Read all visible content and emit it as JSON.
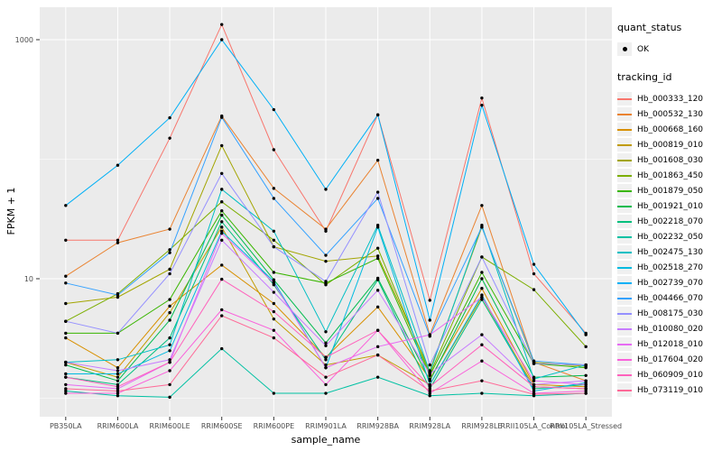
{
  "colors": {
    "figure_background": "#FFFFFF",
    "panel_background": "#EBEBEB",
    "gridline": "#FFFFFF",
    "point": "#000000",
    "tick_text": "#4D4D4D",
    "tick_mark": "#333333",
    "axis_title": "#000000",
    "legend_key_background": "#F0F0F0"
  },
  "chart_data": {
    "type": "line",
    "title": "",
    "xlabel": "sample_name",
    "ylabel": "FPKM + 1",
    "y_scale": "log10",
    "ylim": [
      0.7,
      1800
    ],
    "y_major_ticks": [
      10,
      1000
    ],
    "y_tick_labels": [
      "10",
      "1000"
    ],
    "y_minor_gridlines": [
      1,
      100
    ],
    "grid": "white major/minor gridlines on grey panel (ggplot default)",
    "legend_position": "right",
    "point_marker": {
      "shape": "small-filled-circle",
      "color": "#000000",
      "meaning": "quant_status OK"
    },
    "legend": {
      "quant_status_title": "quant_status",
      "quant_status_ok_label": "OK",
      "tracking_id_title": "tracking_id"
    },
    "categories": [
      "PB350LA",
      "RRIM600LA",
      "RRIM600LE",
      "RRIM600SE",
      "RRIM600PE",
      "RRIM901LA",
      "RRIM928BA",
      "RRIM928LA",
      "RRIM928LE",
      "RRII105LA_Control",
      "RRII105LA_Stressed"
    ],
    "series": [
      {
        "name": "Hb_000333_120",
        "color": "#F8766D",
        "values": [
          21,
          21,
          150,
          1340,
          120,
          25,
          235,
          6.6,
          325,
          11,
          3.5
        ]
      },
      {
        "name": "Hb_000532_130",
        "color": "#EA8331",
        "values": [
          10.5,
          20,
          26,
          230,
          57,
          26,
          98,
          3.4,
          41,
          2.0,
          1.4
        ]
      },
      {
        "name": "Hb_000668_160",
        "color": "#D89000",
        "values": [
          3.2,
          1.8,
          5.9,
          13,
          6.2,
          2.2,
          5.8,
          1.45,
          8.3,
          1.3,
          1.25
        ]
      },
      {
        "name": "Hb_000819_010",
        "color": "#C09B00",
        "values": [
          2.0,
          1.5,
          5.2,
          27,
          4.6,
          1.9,
          2.3,
          1.3,
          7.0,
          1.25,
          1.2
        ]
      },
      {
        "name": "Hb_001608_030",
        "color": "#A3A500",
        "values": [
          6.2,
          7.0,
          12,
          130,
          18.5,
          14,
          15.5,
          1.7,
          27,
          2.0,
          1.85
        ]
      },
      {
        "name": "Hb_001863_450",
        "color": "#7CAE00",
        "values": [
          4.4,
          7.5,
          17.5,
          44,
          21,
          8.9,
          18,
          1.6,
          15.2,
          8.1,
          2.7
        ]
      },
      {
        "name": "Hb_001879_050",
        "color": "#39B600",
        "values": [
          3.5,
          3.5,
          6.7,
          37,
          11.3,
          9.2,
          14.8,
          1.55,
          11.3,
          1.95,
          1.8
        ]
      },
      {
        "name": "Hb_001921_010",
        "color": "#00BB4E",
        "values": [
          1.9,
          1.4,
          4.5,
          34,
          9.8,
          2.9,
          10.1,
          1.4,
          10,
          1.5,
          1.55
        ]
      },
      {
        "name": "Hb_002218_070",
        "color": "#00BF7D",
        "values": [
          1.5,
          1.3,
          3.2,
          30,
          8.9,
          2.1,
          9.8,
          1.2,
          6.7,
          1.2,
          1.3
        ]
      },
      {
        "name": "Hb_002232_050",
        "color": "#00C1A3",
        "values": [
          1.15,
          1.05,
          1.02,
          2.6,
          1.1,
          1.1,
          1.5,
          1.05,
          1.1,
          1.05,
          1.1
        ]
      },
      {
        "name": "Hb_002475_130",
        "color": "#00BFC4",
        "values": [
          2.0,
          2.1,
          2.8,
          56,
          25,
          3.6,
          28,
          1.65,
          28,
          1.45,
          1.9
        ]
      },
      {
        "name": "Hb_002518_270",
        "color": "#00BAE0",
        "values": [
          1.6,
          1.6,
          2.5,
          25,
          9.5,
          1.8,
          27,
          1.3,
          7.3,
          1.15,
          1.35
        ]
      },
      {
        "name": "Hb_002739_070",
        "color": "#00B0F6",
        "values": [
          41,
          89,
          222,
          1000,
          260,
          56,
          235,
          4.5,
          283,
          13.2,
          3.4
        ]
      },
      {
        "name": "Hb_004466_070",
        "color": "#35A2FF",
        "values": [
          9.2,
          7.3,
          16.5,
          224,
          47,
          15.7,
          47,
          3.3,
          27,
          2.05,
          1.9
        ]
      },
      {
        "name": "Hb_008175_030",
        "color": "#9590FF",
        "values": [
          4.4,
          3.5,
          11,
          76,
          18.5,
          9.5,
          53,
          1.9,
          15.2,
          1.95,
          1.9
        ]
      },
      {
        "name": "Hb_010080_020",
        "color": "#C77CFF",
        "values": [
          2.0,
          1.7,
          2.1,
          21,
          7.7,
          2.75,
          8.0,
          1.6,
          3.4,
          1.3,
          1.4
        ]
      },
      {
        "name": "Hb_012018_010",
        "color": "#E76BF3",
        "values": [
          1.3,
          1.2,
          2.0,
          24,
          9.2,
          1.8,
          2.7,
          3.4,
          7.0,
          1.4,
          1.3
        ]
      },
      {
        "name": "Hb_017604_020",
        "color": "#FA62DB",
        "values": [
          1.1,
          1.1,
          1.7,
          5.5,
          3.7,
          1.3,
          3.7,
          1.1,
          2.05,
          1.1,
          1.15
        ]
      },
      {
        "name": "Hb_060909_010",
        "color": "#FF62BC",
        "values": [
          1.5,
          1.25,
          2.0,
          9.9,
          5.3,
          2.2,
          3.7,
          1.25,
          2.8,
          1.25,
          1.2
        ]
      },
      {
        "name": "Hb_073119_010",
        "color": "#FF6A98",
        "values": [
          1.2,
          1.15,
          1.3,
          4.9,
          3.2,
          1.5,
          2.3,
          1.15,
          1.4,
          1.08,
          1.1
        ]
      }
    ]
  }
}
